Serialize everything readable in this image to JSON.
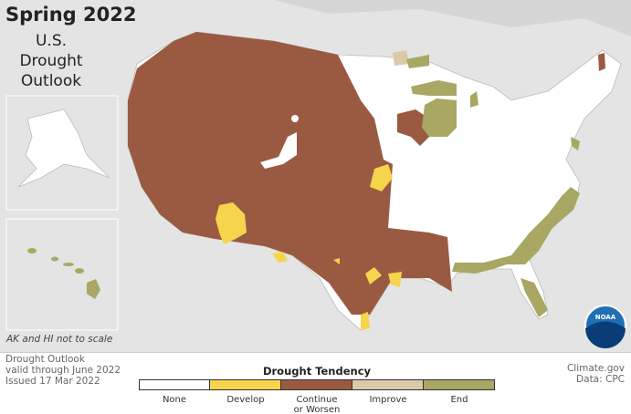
{
  "header": {
    "title": "Spring 2022",
    "subtitle_lines": [
      "U.S.",
      "Drought",
      "Outlook"
    ]
  },
  "inset_note": "AK and HI not to scale",
  "logo": "NOAA",
  "footer": {
    "left_lines": [
      "Drought Outlook",
      "valid through June 2022",
      "Issued 17 Mar 2022"
    ],
    "right_lines": [
      "Climate.gov",
      "Data: CPC"
    ]
  },
  "legend": {
    "title": "Drought Tendency",
    "items": [
      {
        "label": "None",
        "color": "#ffffff"
      },
      {
        "label": "Develop",
        "color": "#f6d44c"
      },
      {
        "label": "Continue or Worsen",
        "color": "#9a5a42"
      },
      {
        "label": "Improve",
        "color": "#dacaaa"
      },
      {
        "label": "End",
        "color": "#a8a763"
      }
    ]
  }
}
